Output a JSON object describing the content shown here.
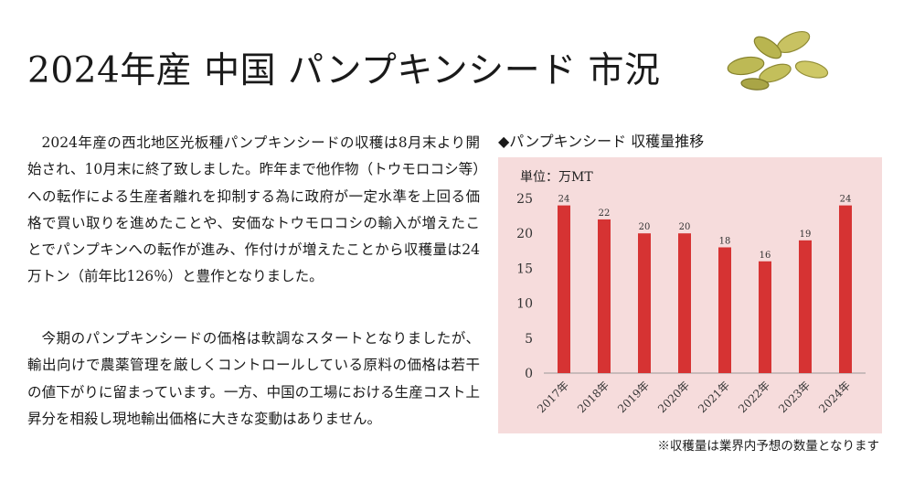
{
  "title": "2024年産 中国 パンプキンシード 市況",
  "paragraphs": [
    "2024年産の西北地区光板種パンプキンシードの収穫は8月末より開始され、10月末に終了致しました。昨年まで他作物（トウモロコシ等）への転作による生産者離れを抑制する為に政府が一定水準を上回る価格で買い取りを進めたことや、安価なトウモロコシの輸入が増えたことでパンプキンへの転作が進み、作付けが増えたことから収穫量は24万トン（前年比126％）と豊作となりました。",
    "今期のパンプキンシードの価格は軟調なスタートとなりましたが、輸出向けで農薬管理を厳しくコントロールしている原料の価格は若干の値下がりに留まっています。一方、中国の工場における生産コスト上昇分を相殺し現地輸出価格に大きな変動はありません。"
  ],
  "seed_image": "pumpkin-seeds-illustration",
  "chart_data": {
    "type": "bar",
    "title": "◆パンプキンシード 収穫量推移",
    "unit_label": "単位：万MT",
    "categories": [
      "2017年",
      "2018年",
      "2019年",
      "2020年",
      "2021年",
      "2022年",
      "2023年",
      "2024年"
    ],
    "values": [
      24,
      22,
      20,
      20,
      18,
      16,
      19,
      24
    ],
    "ylim": [
      0,
      25
    ],
    "yticks": [
      0,
      5,
      10,
      15,
      20,
      25
    ],
    "grid": false,
    "bar_color": "#d63333",
    "background_color": "#f6dcdc",
    "note": "※収穫量は業界内予想の数量となります"
  }
}
